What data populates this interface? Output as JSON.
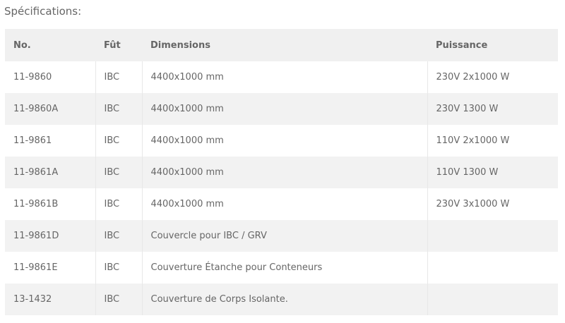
{
  "title": "Spécifications:",
  "headers": [
    "No.",
    "Fût",
    "Dimensions",
    "Puissance"
  ],
  "rows": [
    [
      "11-9860",
      "IBC",
      "4400x1000 mm",
      "230V 2x1000 W"
    ],
    [
      "11-9860A",
      "IBC",
      "4400x1000 mm",
      "230V 1300 W"
    ],
    [
      "11-9861",
      "IBC",
      "4400x1000 mm",
      "110V 2x1000 W"
    ],
    [
      "11-9861A",
      "IBC",
      "4400x1000 mm",
      "110V 1300 W"
    ],
    [
      "11-9861B",
      "IBC",
      "4400x1000 mm",
      "230V 3x1000 W"
    ],
    [
      "11-9861D",
      "IBC",
      "Couvercle pour IBC / GRV",
      ""
    ],
    [
      "11-9861E",
      "IBC",
      "Couverture Étanche pour Conteneurs",
      ""
    ],
    [
      "13-1432",
      "IBC",
      "Couverture de Corps Isolante.",
      ""
    ]
  ]
}
